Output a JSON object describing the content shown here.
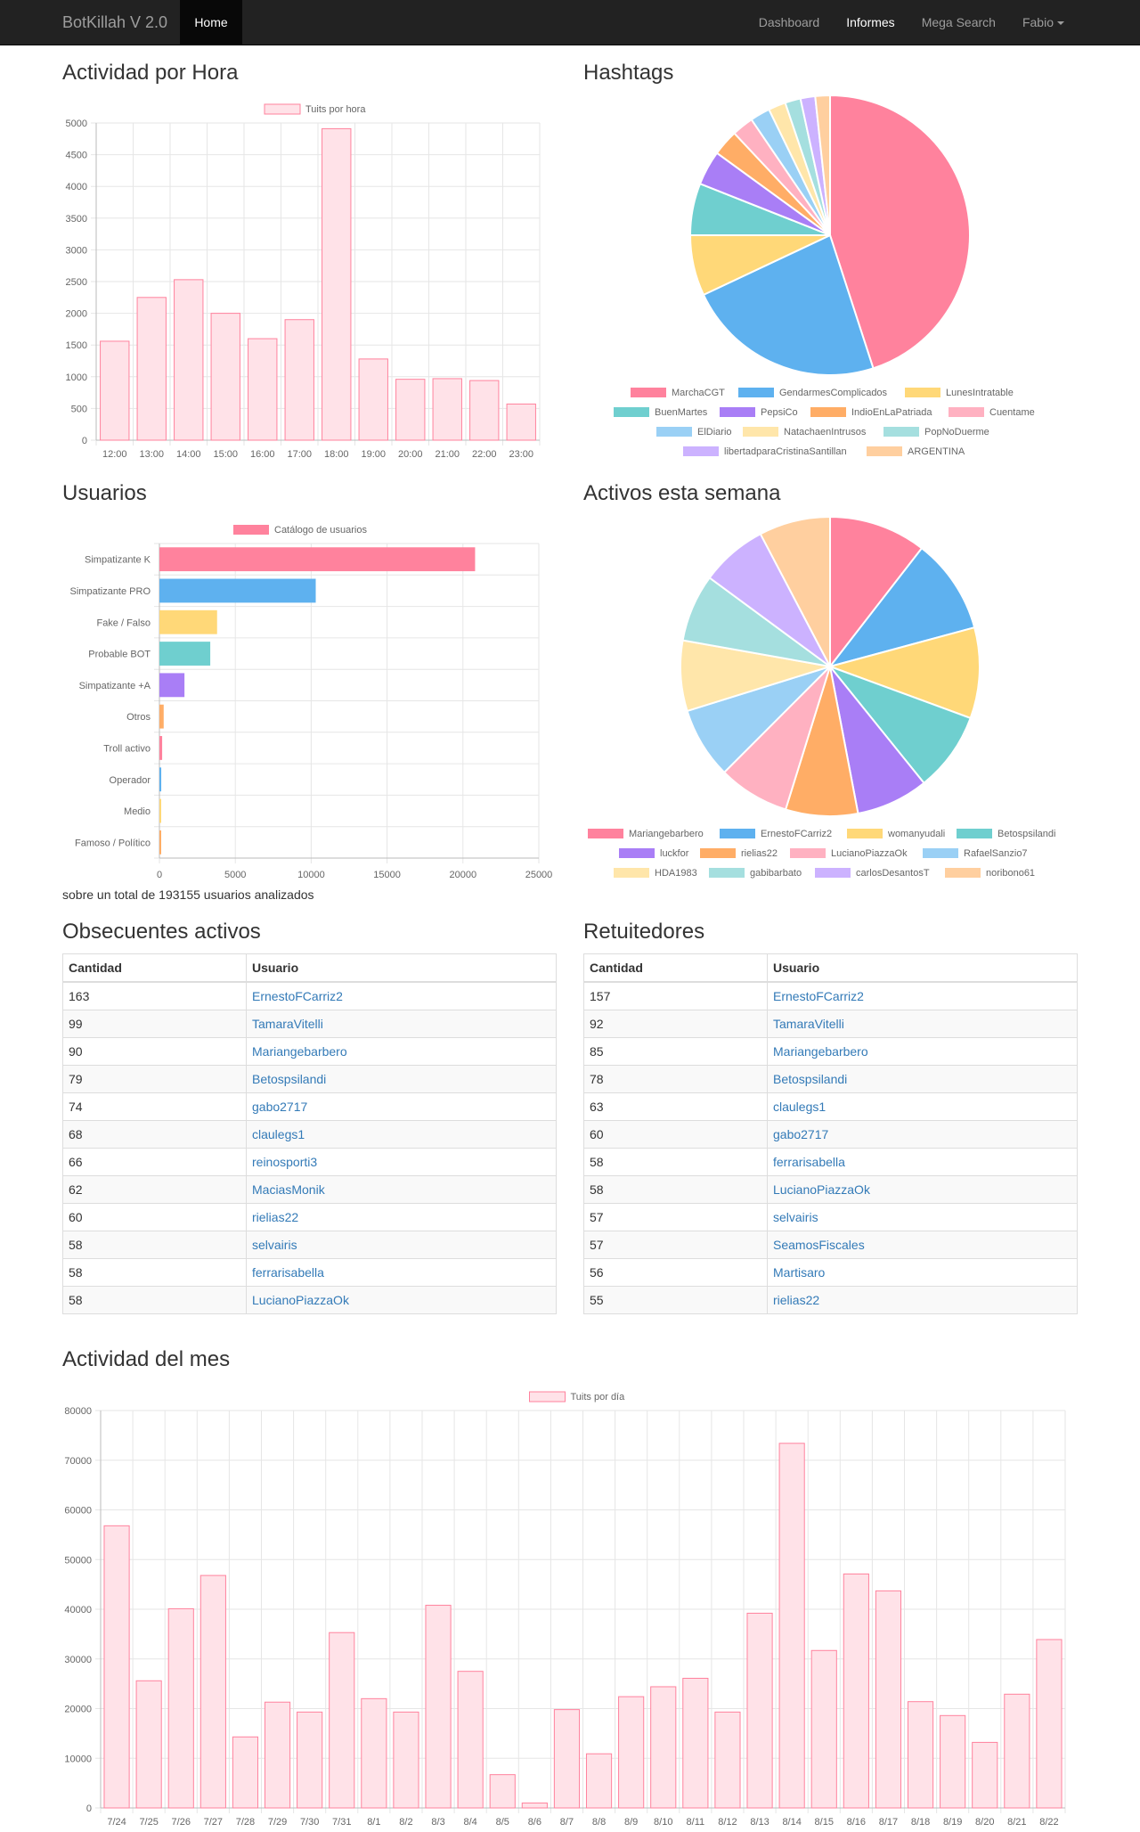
{
  "navbar": {
    "brand": "BotKillah V 2.0",
    "home": "Home",
    "links": [
      {
        "label": "Dashboard",
        "active": false
      },
      {
        "label": "Informes",
        "active": true
      },
      {
        "label": "Mega Search",
        "active": false
      }
    ],
    "user": "Fabio"
  },
  "sections": {
    "actividad_hora": "Actividad por Hora",
    "hashtags": "Hashtags",
    "usuarios": "Usuarios",
    "activos_semana": "Activos esta semana",
    "obsecuentes": "Obsecuentes activos",
    "retuitedores": "Retuitedores",
    "actividad_mes": "Actividad del mes"
  },
  "usuarios_note": "sobre un total de 193155 usuarios analizados",
  "colors": {
    "pink": "#ff829d",
    "pink_fill": "#ffe2e8",
    "blue": "#5eb1ef",
    "yellow": "#ffd878",
    "teal": "#6fcfcf",
    "purple": "#a97ef6",
    "orange": "#ffad66",
    "lightpink": "#ffb1c1",
    "lightblue": "#9ad0f5",
    "paleyellow": "#ffe6aa",
    "paleteal": "#a5dfdf",
    "lavender": "#ccb2ff",
    "peach": "#ffcf9f"
  },
  "chart_data": [
    {
      "type": "bar",
      "id": "hourly",
      "legend": "Tuits por hora",
      "categories": [
        "12:00",
        "13:00",
        "14:00",
        "15:00",
        "16:00",
        "17:00",
        "18:00",
        "19:00",
        "20:00",
        "21:00",
        "22:00",
        "23:00"
      ],
      "values": [
        1560,
        2250,
        2530,
        2000,
        1600,
        1900,
        4910,
        1280,
        960,
        970,
        940,
        570
      ],
      "ylim": [
        0,
        5000
      ],
      "yticks": [
        "0",
        "500",
        "1000",
        "1500",
        "2000",
        "2500",
        "3000",
        "3500",
        "4000",
        "4500",
        "5000"
      ]
    },
    {
      "type": "pie",
      "id": "hashtags",
      "labels": [
        "MarchaCGT",
        "GendarmesComplicados",
        "LunesIntratable",
        "BuenMartes",
        "PepsiCo",
        "IndioEnLaPatriada",
        "Cuentame",
        "ElDiario",
        "NatachaenIntrusos",
        "PopNoDuerme",
        "libertadparaCristinaSantillan",
        "ARGENTINA"
      ],
      "values": [
        45,
        23,
        7,
        6,
        4,
        3,
        2.5,
        2.3,
        2,
        1.8,
        1.7,
        1.7
      ],
      "colors": [
        "#ff829d",
        "#5eb1ef",
        "#ffd878",
        "#6fcfcf",
        "#a97ef6",
        "#ffad66",
        "#ffb1c1",
        "#9ad0f5",
        "#ffe6aa",
        "#a5dfdf",
        "#ccb2ff",
        "#ffcf9f"
      ]
    },
    {
      "type": "bar",
      "orientation": "horizontal",
      "id": "usuarios",
      "legend": "Catálogo de usuarios",
      "categories": [
        "Simpatizante K",
        "Simpatizante PRO",
        "Fake / Falso",
        "Probable BOT",
        "Simpatizante +A",
        "Otros",
        "Troll activo",
        "Operador",
        "Medio",
        "Famoso / Político"
      ],
      "values": [
        20800,
        10300,
        3800,
        3350,
        1650,
        280,
        180,
        120,
        80,
        60
      ],
      "colors": [
        "#ff829d",
        "#5eb1ef",
        "#ffd878",
        "#6fcfcf",
        "#a97ef6",
        "#ffad66",
        "#ff829d",
        "#5eb1ef",
        "#ffd878",
        "#ffad66"
      ],
      "xlim": [
        0,
        25000
      ],
      "xticks": [
        "0",
        "5000",
        "10000",
        "15000",
        "20000",
        "25000"
      ]
    },
    {
      "type": "pie",
      "id": "activos",
      "labels": [
        "Mariangebarbero",
        "ErnestoFCarriz2",
        "womanyudali",
        "Betospsilandi",
        "luckfor",
        "rielias22",
        "LucianoPiazzaOk",
        "RafaelSanzio7",
        "HDA1983",
        "gabibarbato",
        "carlosDesantosT",
        "noribono61"
      ],
      "values": [
        10.5,
        10.3,
        9.8,
        8.6,
        7.8,
        7.8,
        7.7,
        7.7,
        7.6,
        7.3,
        7.2,
        7.7
      ],
      "colors": [
        "#ff829d",
        "#5eb1ef",
        "#ffd878",
        "#6fcfcf",
        "#a97ef6",
        "#ffad66",
        "#ffb1c1",
        "#9ad0f5",
        "#ffe6aa",
        "#a5dfdf",
        "#ccb2ff",
        "#ffcf9f"
      ]
    },
    {
      "type": "bar",
      "id": "monthly",
      "legend": "Tuits por día",
      "categories": [
        "7/24",
        "7/25",
        "7/26",
        "7/27",
        "7/28",
        "7/29",
        "7/30",
        "7/31",
        "8/1",
        "8/2",
        "8/3",
        "8/4",
        "8/5",
        "8/6",
        "8/7",
        "8/8",
        "8/9",
        "8/10",
        "8/11",
        "8/12",
        "8/13",
        "8/14",
        "8/15",
        "8/16",
        "8/17",
        "8/18",
        "8/19",
        "8/20",
        "8/21",
        "8/22"
      ],
      "values": [
        56800,
        25600,
        40100,
        46800,
        14300,
        21300,
        19300,
        35300,
        22000,
        19300,
        40800,
        27500,
        6700,
        1000,
        19800,
        10900,
        22400,
        24400,
        26100,
        19300,
        39200,
        73400,
        31700,
        47100,
        43700,
        21400,
        18600,
        13200,
        22900,
        33900
      ],
      "ylim": [
        0,
        80000
      ],
      "yticks": [
        "0",
        "10000",
        "20000",
        "30000",
        "40000",
        "50000",
        "60000",
        "70000",
        "80000"
      ]
    }
  ],
  "obsecuentes": {
    "headers": [
      "Cantidad",
      "Usuario"
    ],
    "rows": [
      [
        "163",
        "ErnestoFCarriz2"
      ],
      [
        "99",
        "TamaraVitelli"
      ],
      [
        "90",
        "Mariangebarbero"
      ],
      [
        "79",
        "Betospsilandi"
      ],
      [
        "74",
        "gabo2717"
      ],
      [
        "68",
        "claulegs1"
      ],
      [
        "66",
        "reinosporti3"
      ],
      [
        "62",
        "MaciasMonik"
      ],
      [
        "60",
        "rielias22"
      ],
      [
        "58",
        "selvairis"
      ],
      [
        "58",
        "ferrarisabella"
      ],
      [
        "58",
        "LucianoPiazzaOk"
      ]
    ]
  },
  "retuitedores": {
    "headers": [
      "Cantidad",
      "Usuario"
    ],
    "rows": [
      [
        "157",
        "ErnestoFCarriz2"
      ],
      [
        "92",
        "TamaraVitelli"
      ],
      [
        "85",
        "Mariangebarbero"
      ],
      [
        "78",
        "Betospsilandi"
      ],
      [
        "63",
        "claulegs1"
      ],
      [
        "60",
        "gabo2717"
      ],
      [
        "58",
        "ferrarisabella"
      ],
      [
        "58",
        "LucianoPiazzaOk"
      ],
      [
        "57",
        "selvairis"
      ],
      [
        "57",
        "SeamosFiscales"
      ],
      [
        "56",
        "Martisaro"
      ],
      [
        "55",
        "rielias22"
      ]
    ]
  }
}
